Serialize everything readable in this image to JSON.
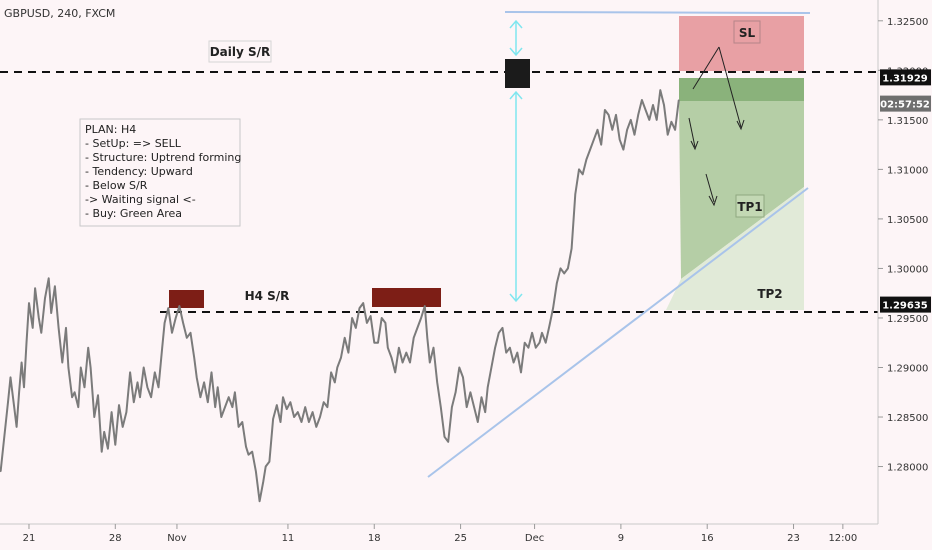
{
  "header": {
    "symbol": "GBPUSD, 240, FXCM"
  },
  "annotations": {
    "daily_sr": "Daily S/R",
    "h4_sr": "H4 S/R",
    "sl": "SL",
    "tp1": "TP1",
    "tp2": "TP2"
  },
  "plan": [
    "PLAN: H4",
    "- SetUp: => SELL",
    "- Structure: Uptrend forming",
    "- Tendency: Upward",
    "- Below S/R",
    "-> Waiting signal <-",
    "- Buy: Green Area"
  ],
  "colors": {
    "price_line": "#7b7b7b",
    "trend_line": "#a9c4ea",
    "sl_zone": "#e8a0a4",
    "entry_zone": "#8ab27b",
    "tp1_zone": "#b5cea6",
    "tp2_zone": "#e1ead8",
    "sr_box": "#7d1e16",
    "measure": "#7fe6ef",
    "badge": "#1b1b1b"
  },
  "chart_data": {
    "type": "line",
    "y_axis_ticks": [
      "1.32500",
      "1.32000",
      "1.31500",
      "1.31000",
      "1.30500",
      "1.30000",
      "1.29500",
      "1.29000",
      "1.28500",
      "1.28000"
    ],
    "price_badges": [
      {
        "value": 1.31929,
        "label": "1.31929",
        "style": "dark"
      },
      {
        "value": 1.31664,
        "label": "02:57:52",
        "style": "grey"
      },
      {
        "value": 1.29635,
        "label": "1.29635",
        "style": "dark"
      }
    ],
    "x_axis_ticks": [
      {
        "label": "21",
        "x": 0
      },
      {
        "label": "28",
        "x": 7
      },
      {
        "label": "Nov",
        "x": 12
      },
      {
        "label": "11",
        "x": 21
      },
      {
        "label": "18",
        "x": 28
      },
      {
        "label": "25",
        "x": 35
      },
      {
        "label": "Dec",
        "x": 41
      },
      {
        "label": "9",
        "x": 48
      },
      {
        "label": "16",
        "x": 55
      },
      {
        "label": "23",
        "x": 62
      },
      {
        "label": "12:00",
        "x": 66
      }
    ],
    "ylim": [
      1.2742,
      1.3271
    ],
    "xlim": [
      -2.35,
      68.85
    ],
    "support_resistance": [
      1.31929,
      1.29635
    ],
    "series": [
      {
        "values": [
          [
            -2.3,
            1.2795
          ],
          [
            -2.0,
            1.283
          ],
          [
            -1.7,
            1.2865
          ],
          [
            -1.5,
            1.289
          ],
          [
            -1.2,
            1.286
          ],
          [
            -1.0,
            1.284
          ],
          [
            -0.8,
            1.2875
          ],
          [
            -0.6,
            1.2905
          ],
          [
            -0.4,
            1.288
          ],
          [
            -0.2,
            1.2925
          ],
          [
            0.0,
            1.2965
          ],
          [
            0.3,
            1.294
          ],
          [
            0.5,
            1.298
          ],
          [
            0.8,
            1.295
          ],
          [
            1.0,
            1.2935
          ],
          [
            1.3,
            1.297
          ],
          [
            1.6,
            1.299
          ],
          [
            1.8,
            1.2955
          ],
          [
            2.1,
            1.2982
          ],
          [
            2.4,
            1.294
          ],
          [
            2.7,
            1.2905
          ],
          [
            3.0,
            1.294
          ],
          [
            3.2,
            1.29
          ],
          [
            3.5,
            1.287
          ],
          [
            3.7,
            1.2875
          ],
          [
            4.0,
            1.286
          ],
          [
            4.2,
            1.29
          ],
          [
            4.5,
            1.288
          ],
          [
            4.8,
            1.292
          ],
          [
            5.0,
            1.29
          ],
          [
            5.3,
            1.285
          ],
          [
            5.6,
            1.2872
          ],
          [
            5.9,
            1.2815
          ],
          [
            6.1,
            1.2835
          ],
          [
            6.4,
            1.2818
          ],
          [
            6.7,
            1.2855
          ],
          [
            7.0,
            1.2822
          ],
          [
            7.3,
            1.2862
          ],
          [
            7.6,
            1.284
          ],
          [
            7.9,
            1.2855
          ],
          [
            8.2,
            1.2895
          ],
          [
            8.5,
            1.2865
          ],
          [
            8.8,
            1.2885
          ],
          [
            9.0,
            1.287
          ],
          [
            9.3,
            1.29
          ],
          [
            9.6,
            1.288
          ],
          [
            9.9,
            1.287
          ],
          [
            10.2,
            1.2895
          ],
          [
            10.5,
            1.288
          ],
          [
            10.8,
            1.292
          ],
          [
            11.0,
            1.2945
          ],
          [
            11.3,
            1.296
          ],
          [
            11.6,
            1.2935
          ],
          [
            11.9,
            1.295
          ],
          [
            12.2,
            1.2962
          ],
          [
            12.5,
            1.2945
          ],
          [
            12.8,
            1.293
          ],
          [
            13.1,
            1.2935
          ],
          [
            13.4,
            1.291
          ],
          [
            13.6,
            1.289
          ],
          [
            13.9,
            1.287
          ],
          [
            14.2,
            1.2885
          ],
          [
            14.5,
            1.2865
          ],
          [
            14.8,
            1.2895
          ],
          [
            15.1,
            1.286
          ],
          [
            15.3,
            1.288
          ],
          [
            15.6,
            1.285
          ],
          [
            15.9,
            1.286
          ],
          [
            16.2,
            1.287
          ],
          [
            16.5,
            1.286
          ],
          [
            16.7,
            1.2875
          ],
          [
            17.0,
            1.284
          ],
          [
            17.3,
            1.2845
          ],
          [
            17.6,
            1.282
          ],
          [
            17.8,
            1.2812
          ],
          [
            18.1,
            1.2815
          ],
          [
            18.4,
            1.2795
          ],
          [
            18.7,
            1.2765
          ],
          [
            19.0,
            1.2785
          ],
          [
            19.2,
            1.28
          ],
          [
            19.5,
            1.2805
          ],
          [
            19.8,
            1.2848
          ],
          [
            20.1,
            1.2862
          ],
          [
            20.4,
            1.2845
          ],
          [
            20.6,
            1.287
          ],
          [
            20.9,
            1.2858
          ],
          [
            21.2,
            1.2865
          ],
          [
            21.5,
            1.285
          ],
          [
            21.8,
            1.2855
          ],
          [
            22.1,
            1.2845
          ],
          [
            22.4,
            1.286
          ],
          [
            22.7,
            1.2845
          ],
          [
            23.0,
            1.2855
          ],
          [
            23.3,
            1.284
          ],
          [
            23.6,
            1.285
          ],
          [
            23.9,
            1.2865
          ],
          [
            24.2,
            1.286
          ],
          [
            24.5,
            1.2895
          ],
          [
            24.8,
            1.2885
          ],
          [
            25.0,
            1.29
          ],
          [
            25.3,
            1.291
          ],
          [
            25.6,
            1.293
          ],
          [
            25.9,
            1.2915
          ],
          [
            26.2,
            1.295
          ],
          [
            26.5,
            1.294
          ],
          [
            26.8,
            1.296
          ],
          [
            27.1,
            1.2965
          ],
          [
            27.4,
            1.2945
          ],
          [
            27.7,
            1.2952
          ],
          [
            28.0,
            1.2925
          ],
          [
            28.3,
            1.2925
          ],
          [
            28.6,
            1.295
          ],
          [
            28.9,
            1.2945
          ],
          [
            29.1,
            1.292
          ],
          [
            29.4,
            1.291
          ],
          [
            29.7,
            1.2895
          ],
          [
            30.0,
            1.292
          ],
          [
            30.3,
            1.2905
          ],
          [
            30.6,
            1.2915
          ],
          [
            30.9,
            1.2905
          ],
          [
            31.2,
            1.293
          ],
          [
            31.5,
            1.294
          ],
          [
            31.8,
            1.295
          ],
          [
            32.1,
            1.2962
          ],
          [
            32.3,
            1.293
          ],
          [
            32.5,
            1.2905
          ],
          [
            32.8,
            1.292
          ],
          [
            33.1,
            1.2885
          ],
          [
            33.4,
            1.286
          ],
          [
            33.7,
            1.283
          ],
          [
            34.0,
            1.2825
          ],
          [
            34.3,
            1.286
          ],
          [
            34.6,
            1.2875
          ],
          [
            34.9,
            1.29
          ],
          [
            35.2,
            1.289
          ],
          [
            35.5,
            1.286
          ],
          [
            35.8,
            1.2875
          ],
          [
            36.1,
            1.286
          ],
          [
            36.4,
            1.2845
          ],
          [
            36.7,
            1.287
          ],
          [
            37.0,
            1.2855
          ],
          [
            37.2,
            1.288
          ],
          [
            37.5,
            1.29
          ],
          [
            37.8,
            1.292
          ],
          [
            38.1,
            1.2935
          ],
          [
            38.4,
            1.294
          ],
          [
            38.7,
            1.2915
          ],
          [
            39.0,
            1.292
          ],
          [
            39.3,
            1.2905
          ],
          [
            39.6,
            1.2915
          ],
          [
            39.9,
            1.2895
          ],
          [
            40.2,
            1.2925
          ],
          [
            40.5,
            1.292
          ],
          [
            40.8,
            1.2935
          ],
          [
            41.1,
            1.292
          ],
          [
            41.4,
            1.2925
          ],
          [
            41.6,
            1.2935
          ],
          [
            41.9,
            1.2925
          ],
          [
            42.2,
            1.2942
          ],
          [
            42.5,
            1.296
          ],
          [
            42.8,
            1.2985
          ],
          [
            43.1,
            1.3
          ],
          [
            43.4,
            1.2995
          ],
          [
            43.7,
            1.3
          ],
          [
            44.0,
            1.302
          ],
          [
            44.3,
            1.3075
          ],
          [
            44.6,
            1.31
          ],
          [
            44.9,
            1.3095
          ],
          [
            45.2,
            1.311
          ],
          [
            45.5,
            1.312
          ],
          [
            45.8,
            1.313
          ],
          [
            46.1,
            1.314
          ],
          [
            46.4,
            1.3125
          ],
          [
            46.7,
            1.316
          ],
          [
            47.0,
            1.3155
          ],
          [
            47.3,
            1.314
          ],
          [
            47.6,
            1.3155
          ],
          [
            47.9,
            1.313
          ],
          [
            48.2,
            1.312
          ],
          [
            48.5,
            1.314
          ],
          [
            48.8,
            1.315
          ],
          [
            49.1,
            1.3135
          ],
          [
            49.4,
            1.3155
          ],
          [
            49.7,
            1.317
          ],
          [
            50.0,
            1.316
          ],
          [
            50.3,
            1.315
          ],
          [
            50.6,
            1.3165
          ],
          [
            50.9,
            1.315
          ],
          [
            51.2,
            1.318
          ],
          [
            51.5,
            1.3165
          ],
          [
            51.8,
            1.3135
          ],
          [
            52.1,
            1.3148
          ],
          [
            52.4,
            1.314
          ],
          [
            52.7,
            1.317
          ]
        ]
      }
    ]
  }
}
